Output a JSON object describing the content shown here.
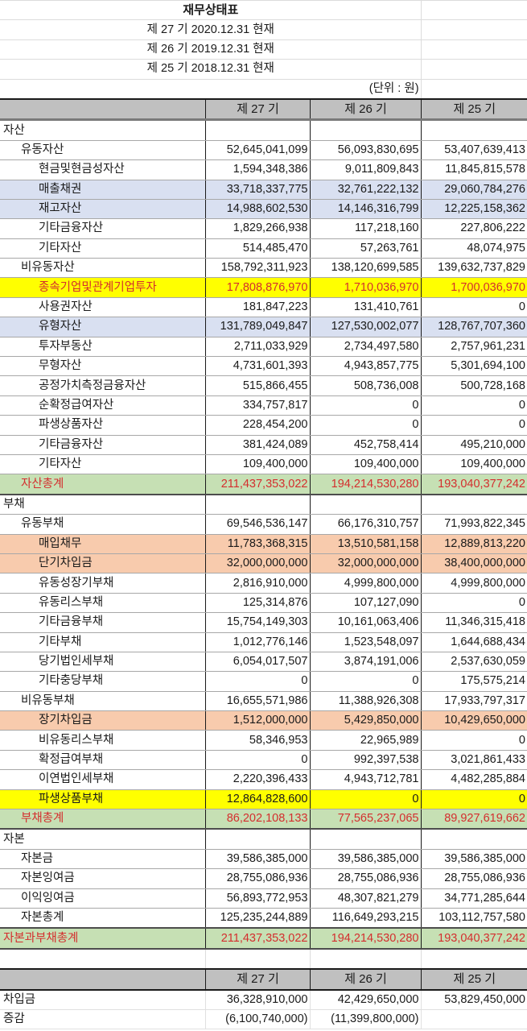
{
  "title": "재무상태표",
  "subtitles": [
    "제 27 기 2020.12.31 현재",
    "제 26 기 2019.12.31 현재",
    "제 25 기 2018.12.31 현재"
  ],
  "unit": "(단위 : 원)",
  "columns": [
    "",
    "제 27 기",
    "제 26 기",
    "제 25 기"
  ],
  "colors": {
    "header_gray": "#c0c0c0",
    "highlight_blue": "#d9e0f1",
    "highlight_yellow": "#ffff00",
    "highlight_orange": "#f8cbad",
    "highlight_green": "#c6e0b4",
    "text_red": "#d42e2e"
  },
  "rows": [
    {
      "label": "자산",
      "level": 0,
      "values": [
        "",
        "",
        ""
      ],
      "style": ""
    },
    {
      "label": "유동자산",
      "level": 1,
      "values": [
        "52,645,041,099",
        "56,093,830,695",
        "53,407,639,413"
      ],
      "style": ""
    },
    {
      "label": "현금및현금성자산",
      "level": 2,
      "values": [
        "1,594,348,386",
        "9,011,809,843",
        "11,845,815,578"
      ],
      "style": ""
    },
    {
      "label": "매출채권",
      "level": 2,
      "values": [
        "33,718,337,775",
        "32,761,222,132",
        "29,060,784,276"
      ],
      "style": "blue"
    },
    {
      "label": "재고자산",
      "level": 2,
      "values": [
        "14,988,602,530",
        "14,146,316,799",
        "12,225,158,362"
      ],
      "style": "blue"
    },
    {
      "label": "기타금융자산",
      "level": 2,
      "values": [
        "1,829,266,938",
        "117,218,160",
        "227,806,222"
      ],
      "style": ""
    },
    {
      "label": "기타자산",
      "level": 2,
      "values": [
        "514,485,470",
        "57,263,761",
        "48,074,975"
      ],
      "style": ""
    },
    {
      "label": "비유동자산",
      "level": 1,
      "values": [
        "158,792,311,923",
        "138,120,699,585",
        "139,632,737,829"
      ],
      "style": ""
    },
    {
      "label": "종속기업및관계기업투자",
      "level": 2,
      "values": [
        "17,808,876,970",
        "1,710,036,970",
        "1,700,036,970"
      ],
      "style": "yellow red"
    },
    {
      "label": "사용권자산",
      "level": 2,
      "values": [
        "181,847,223",
        "131,410,761",
        "0"
      ],
      "style": ""
    },
    {
      "label": "유형자산",
      "level": 2,
      "values": [
        "131,789,049,847",
        "127,530,002,077",
        "128,767,707,360"
      ],
      "style": "blue"
    },
    {
      "label": "투자부동산",
      "level": 2,
      "values": [
        "2,711,033,929",
        "2,734,497,580",
        "2,757,961,231"
      ],
      "style": ""
    },
    {
      "label": "무형자산",
      "level": 2,
      "values": [
        "4,731,601,393",
        "4,943,857,775",
        "5,301,694,100"
      ],
      "style": ""
    },
    {
      "label": "공정가치측정금융자산",
      "level": 2,
      "values": [
        "515,866,455",
        "508,736,008",
        "500,728,168"
      ],
      "style": ""
    },
    {
      "label": "순확정급여자산",
      "level": 2,
      "values": [
        "334,757,817",
        "0",
        "0"
      ],
      "style": ""
    },
    {
      "label": "파생상품자산",
      "level": 2,
      "values": [
        "228,454,200",
        "0",
        "0"
      ],
      "style": ""
    },
    {
      "label": "기타금융자산",
      "level": 2,
      "values": [
        "381,424,089",
        "452,758,414",
        "495,210,000"
      ],
      "style": ""
    },
    {
      "label": "기타자산",
      "level": 2,
      "values": [
        "109,400,000",
        "109,400,000",
        "109,400,000"
      ],
      "style": ""
    },
    {
      "label": "자산총계",
      "level": 1,
      "values": [
        "211,437,353,022",
        "194,214,530,280",
        "193,040,377,242"
      ],
      "style": "green red total"
    },
    {
      "label": "부채",
      "level": 0,
      "values": [
        "",
        "",
        ""
      ],
      "style": ""
    },
    {
      "label": "유동부채",
      "level": 1,
      "values": [
        "69,546,536,147",
        "66,176,310,757",
        "71,993,822,345"
      ],
      "style": ""
    },
    {
      "label": "매입채무",
      "level": 2,
      "values": [
        "11,783,368,315",
        "13,510,581,158",
        "12,889,813,220"
      ],
      "style": "orange"
    },
    {
      "label": "단기차입금",
      "level": 2,
      "values": [
        "32,000,000,000",
        "32,000,000,000",
        "38,400,000,000"
      ],
      "style": "orange"
    },
    {
      "label": "유동성장기부채",
      "level": 2,
      "values": [
        "2,816,910,000",
        "4,999,800,000",
        "4,999,800,000"
      ],
      "style": ""
    },
    {
      "label": "유동리스부채",
      "level": 2,
      "values": [
        "125,314,876",
        "107,127,090",
        "0"
      ],
      "style": ""
    },
    {
      "label": "기타금융부채",
      "level": 2,
      "values": [
        "15,754,149,303",
        "10,161,063,406",
        "11,346,315,418"
      ],
      "style": ""
    },
    {
      "label": "기타부채",
      "level": 2,
      "values": [
        "1,012,776,146",
        "1,523,548,097",
        "1,644,688,434"
      ],
      "style": ""
    },
    {
      "label": "당기법인세부채",
      "level": 2,
      "values": [
        "6,054,017,507",
        "3,874,191,006",
        "2,537,630,059"
      ],
      "style": ""
    },
    {
      "label": "기타충당부채",
      "level": 2,
      "values": [
        "0",
        "0",
        "175,575,214"
      ],
      "style": ""
    },
    {
      "label": "비유동부채",
      "level": 1,
      "values": [
        "16,655,571,986",
        "11,388,926,308",
        "17,933,797,317"
      ],
      "style": ""
    },
    {
      "label": "장기차입금",
      "level": 2,
      "values": [
        "1,512,000,000",
        "5,429,850,000",
        "10,429,650,000"
      ],
      "style": "orange"
    },
    {
      "label": "비유동리스부채",
      "level": 2,
      "values": [
        "58,346,953",
        "22,965,989",
        "0"
      ],
      "style": ""
    },
    {
      "label": "확정급여부채",
      "level": 2,
      "values": [
        "0",
        "992,397,538",
        "3,021,861,433"
      ],
      "style": ""
    },
    {
      "label": "이연법인세부채",
      "level": 2,
      "values": [
        "2,220,396,433",
        "4,943,712,781",
        "4,482,285,884"
      ],
      "style": ""
    },
    {
      "label": "파생상품부채",
      "level": 2,
      "values": [
        "12,864,828,600",
        "0",
        "0"
      ],
      "style": "yellow"
    },
    {
      "label": "부채총계",
      "level": 1,
      "values": [
        "86,202,108,133",
        "77,565,237,065",
        "89,927,619,662"
      ],
      "style": "green red total"
    },
    {
      "label": "자본",
      "level": 0,
      "values": [
        "",
        "",
        ""
      ],
      "style": ""
    },
    {
      "label": "자본금",
      "level": 1,
      "values": [
        "39,586,385,000",
        "39,586,385,000",
        "39,586,385,000"
      ],
      "style": ""
    },
    {
      "label": "자본잉여금",
      "level": 1,
      "values": [
        "28,755,086,936",
        "28,755,086,936",
        "28,755,086,936"
      ],
      "style": ""
    },
    {
      "label": "이익잉여금",
      "level": 1,
      "values": [
        "56,893,772,953",
        "48,307,821,279",
        "34,771,285,644"
      ],
      "style": ""
    },
    {
      "label": "자본총계",
      "level": 1,
      "values": [
        "125,235,244,889",
        "116,649,293,215",
        "103,112,757,580"
      ],
      "style": "total"
    },
    {
      "label": "자본과부채총계",
      "level": 0,
      "values": [
        "211,437,353,022",
        "194,214,530,280",
        "193,040,377,242"
      ],
      "style": "green red total"
    }
  ],
  "borrowings": {
    "columns": [
      "",
      "제 27 기",
      "제 26 기",
      "제 25 기"
    ],
    "rows": [
      {
        "label": "차입금",
        "values": [
          "36,328,910,000",
          "42,429,650,000",
          "53,829,450,000"
        ]
      },
      {
        "label": "증감",
        "values": [
          "(6,100,740,000)",
          "(11,399,800,000)",
          ""
        ]
      }
    ]
  }
}
